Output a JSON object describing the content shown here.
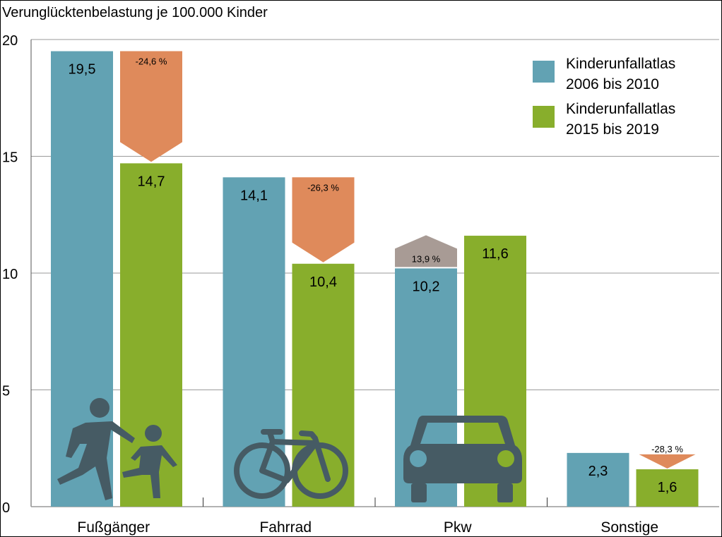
{
  "chart_data": {
    "type": "bar",
    "title": "Verunglücktenbelastung je 100.000 Kinder",
    "xlabel": "",
    "ylabel": "Verunglücktenbelastung je 100.000 Kinder",
    "ylim": [
      0,
      20
    ],
    "yticks": [
      0,
      5,
      10,
      15,
      20
    ],
    "ytick_labels": [
      "0",
      "5",
      "10",
      "15",
      "20"
    ],
    "grid": true,
    "legend_position": "top-right",
    "categories": [
      "Fußgänger",
      "Fahrrad",
      "Pkw",
      "Sonstige"
    ],
    "series": [
      {
        "name": "Kinderunfallatlas 2006 bis 2010",
        "legend_lines": [
          "Kinderunfallatlas",
          "2006 bis 2010"
        ],
        "color": "#62a2b3",
        "values": [
          19.5,
          14.1,
          10.2,
          2.3
        ],
        "labels": [
          "19,5",
          "14,1",
          "10,2",
          "2,3"
        ]
      },
      {
        "name": "Kinderunfallatlas 2015 bis 2019",
        "legend_lines": [
          "Kinderunfallatlas",
          "2015 bis 2019"
        ],
        "color": "#88ae2c",
        "values": [
          14.7,
          10.4,
          11.6,
          1.6
        ],
        "labels": [
          "14,7",
          "10,4",
          "11,6",
          "1,6"
        ]
      }
    ],
    "changes": [
      {
        "category": "Fußgänger",
        "percent": -24.6,
        "label": "-24,6 %",
        "direction": "down",
        "color": "#df8a5b"
      },
      {
        "category": "Fahrrad",
        "percent": -26.3,
        "label": "-26,3 %",
        "direction": "down",
        "color": "#df8a5b"
      },
      {
        "category": "Pkw",
        "percent": 13.9,
        "label": "13,9 %",
        "direction": "up",
        "color": "#a89b95"
      },
      {
        "category": "Sonstige",
        "percent": -28.3,
        "label": "-28,3 %",
        "direction": "down",
        "color": "#df8a5b"
      }
    ],
    "icons": [
      "pedestrian-icon",
      "bicycle-icon",
      "car-icon"
    ],
    "icon_color": "#465b64"
  }
}
